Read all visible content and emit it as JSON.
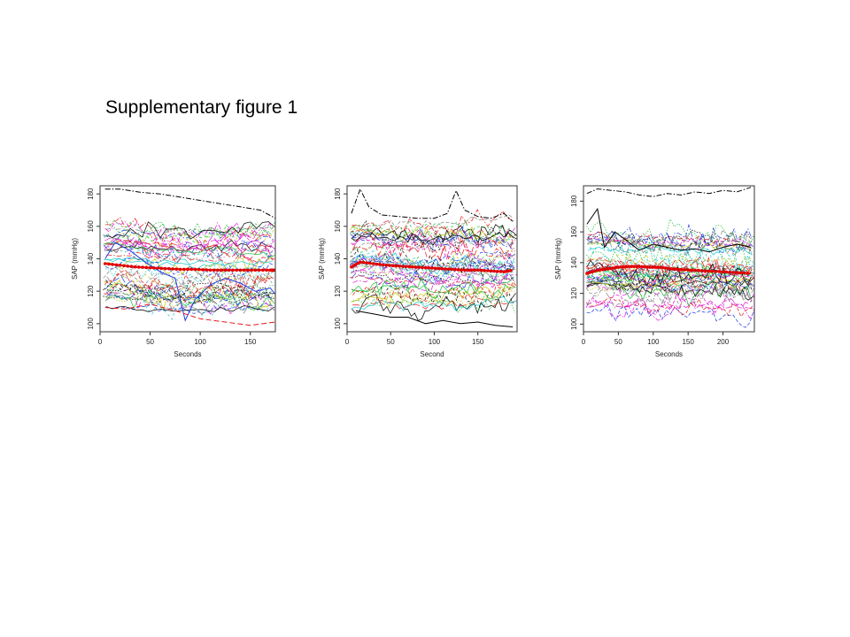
{
  "title": "Supplementary figure 1",
  "colors": {
    "series_palette": [
      "#000000",
      "#e41a1c",
      "#1fbf3a",
      "#1f3fe0",
      "#19c8d0",
      "#e01ad8",
      "#c8c81a",
      "#888888"
    ],
    "mean": "#e00000"
  },
  "chart_data": [
    {
      "type": "line",
      "title": "",
      "xlabel": "Seconds",
      "ylabel": "SAP (mmHg)",
      "xlim": [
        0,
        175
      ],
      "ylim": [
        95,
        185
      ],
      "xticks": [
        0,
        50,
        100,
        150
      ],
      "yticks": [
        100,
        120,
        140,
        160,
        180
      ],
      "grid": false,
      "series_count": 50,
      "mean_series": {
        "x": [
          5,
          20,
          35,
          50,
          65,
          80,
          95,
          110,
          125,
          140,
          155,
          170,
          175
        ],
        "y": [
          137,
          136,
          135,
          134.5,
          134,
          133.5,
          133.5,
          133,
          133,
          133,
          133,
          133,
          133
        ]
      },
      "highlighted_series": [
        {
          "x": [
            5,
            20,
            40,
            60,
            80,
            100,
            120,
            140,
            160,
            175
          ],
          "y": [
            183,
            183,
            181,
            180,
            178,
            176,
            174,
            172,
            170,
            165
          ]
        },
        {
          "x": [
            5,
            15,
            30,
            45,
            60,
            75,
            85,
            95,
            110,
            125,
            140,
            155,
            170,
            175
          ],
          "y": [
            140,
            150,
            145,
            138,
            132,
            128,
            102,
            115,
            124,
            128,
            125,
            120,
            122,
            118
          ]
        },
        {
          "x": [
            5,
            25,
            50,
            75,
            100,
            125,
            150,
            175
          ],
          "y": [
            110,
            109,
            112,
            108,
            103,
            101,
            99,
            101
          ]
        }
      ]
    },
    {
      "type": "line",
      "title": "",
      "xlabel": "Second",
      "ylabel": "SAP (mmHg)",
      "xlim": [
        0,
        195
      ],
      "ylim": [
        95,
        185
      ],
      "xticks": [
        0,
        50,
        100,
        150
      ],
      "yticks": [
        100,
        120,
        140,
        160,
        180
      ],
      "grid": false,
      "series_count": 50,
      "mean_series": {
        "x": [
          5,
          15,
          30,
          45,
          60,
          75,
          90,
          105,
          120,
          135,
          150,
          165,
          180,
          190
        ],
        "y": [
          135,
          138,
          137,
          136,
          135.5,
          135,
          134.5,
          134,
          133.5,
          133,
          133,
          132.5,
          132,
          133
        ]
      },
      "highlighted_series": [
        {
          "x": [
            5,
            15,
            25,
            40,
            60,
            80,
            100,
            115,
            125,
            135,
            150,
            165,
            180,
            190
          ],
          "y": [
            168,
            183,
            172,
            167,
            166,
            165,
            165,
            168,
            182,
            170,
            166,
            165,
            168,
            163
          ]
        },
        {
          "x": [
            10,
            30,
            50,
            70,
            90,
            110,
            130,
            150,
            170,
            190
          ],
          "y": [
            108,
            106,
            104,
            104,
            100,
            102,
            100,
            101,
            99,
            98
          ]
        }
      ]
    },
    {
      "type": "line",
      "title": "",
      "xlabel": "Seconds",
      "ylabel": "SAP (mmHg)",
      "xlim": [
        0,
        245
      ],
      "ylim": [
        95,
        190
      ],
      "xticks": [
        0,
        50,
        100,
        150,
        200
      ],
      "yticks": [
        100,
        120,
        140,
        160,
        180
      ],
      "grid": false,
      "series_count": 50,
      "mean_series": {
        "x": [
          5,
          20,
          35,
          50,
          65,
          80,
          95,
          110,
          125,
          140,
          160,
          180,
          200,
          220,
          240
        ],
        "y": [
          133,
          135,
          136,
          137,
          137.5,
          137.5,
          137,
          137,
          136,
          135.5,
          135,
          134.5,
          134,
          133.5,
          133
        ]
      },
      "highlighted_series": [
        {
          "x": [
            5,
            20,
            40,
            60,
            80,
            100,
            120,
            140,
            160,
            180,
            200,
            220,
            240
          ],
          "y": [
            185,
            188,
            187,
            186,
            184,
            183,
            185,
            184,
            186,
            185,
            187,
            186,
            189
          ]
        },
        {
          "x": [
            5,
            20,
            30,
            45,
            60,
            80,
            100,
            120,
            140,
            160,
            180,
            200,
            220,
            240
          ],
          "y": [
            165,
            175,
            150,
            160,
            155,
            148,
            152,
            150,
            148,
            149,
            147,
            150,
            152,
            150
          ]
        }
      ]
    }
  ]
}
